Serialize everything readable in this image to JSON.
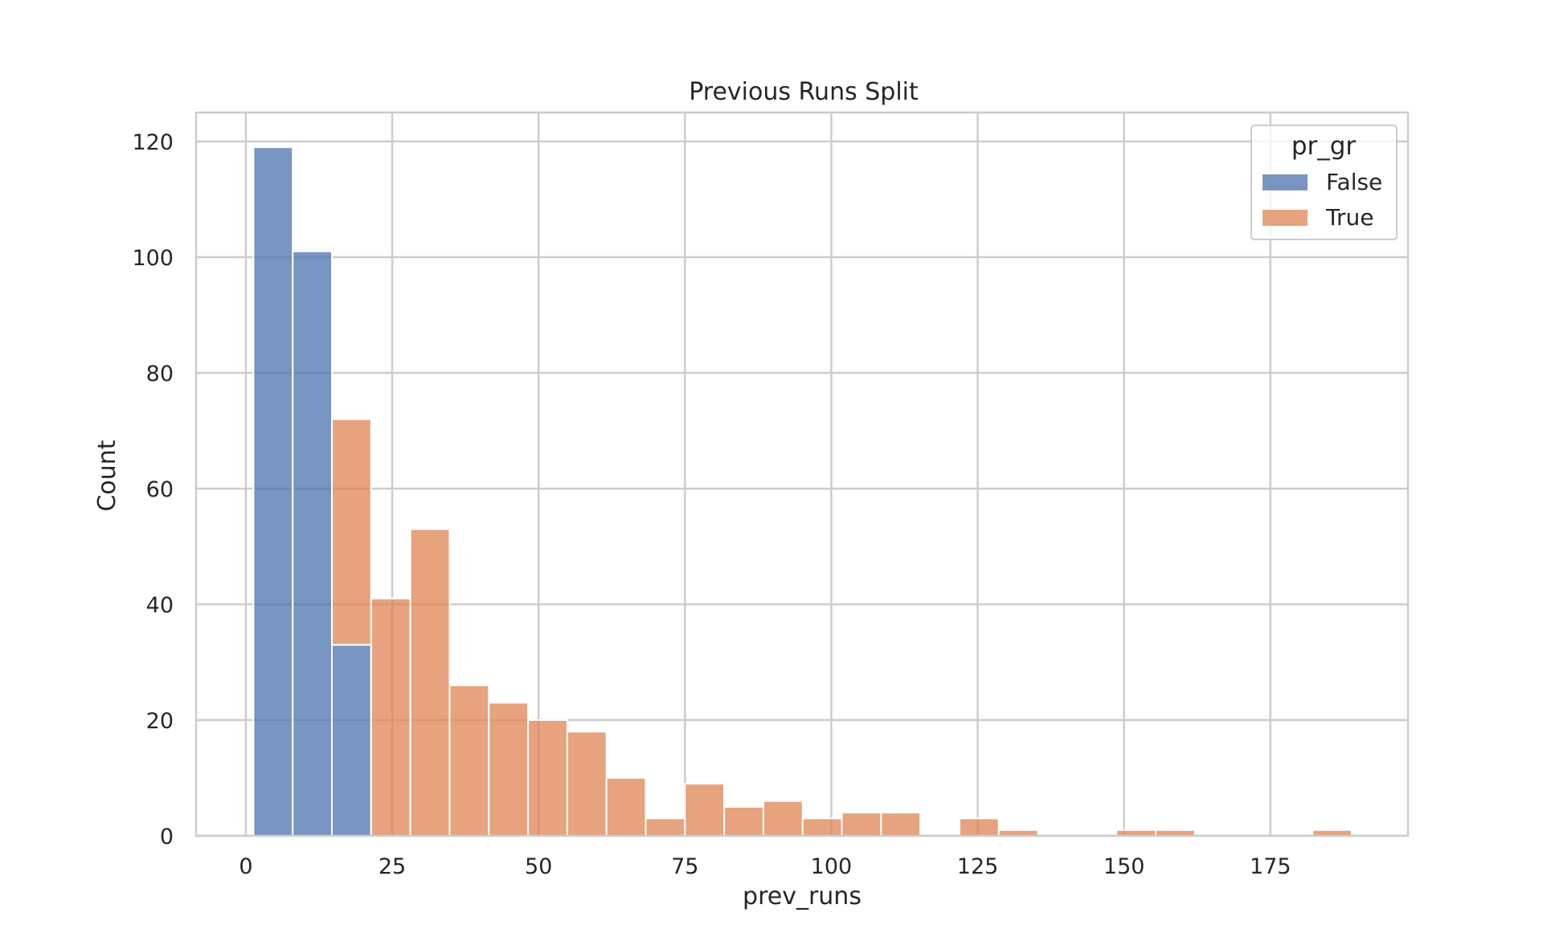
{
  "chart_data": {
    "type": "bar",
    "subtype": "stacked-histogram",
    "title": "Previous Runs Split",
    "xlabel": "prev_runs",
    "ylabel": "Count",
    "xlim": [
      -8.5,
      198.5
    ],
    "ylim": [
      0,
      125
    ],
    "xticks": [
      0,
      25,
      50,
      75,
      100,
      125,
      150,
      175
    ],
    "yticks": [
      0,
      20,
      40,
      60,
      80,
      100,
      120
    ],
    "grid": true,
    "legend": {
      "title": "pr_gr",
      "placement": "top-right",
      "entries": [
        "False",
        "True"
      ]
    },
    "bin_width": 6.7,
    "series": [
      {
        "name": "False",
        "color": "#4c72b0",
        "bins": [
          {
            "x0": 1.3,
            "count": 119
          },
          {
            "x0": 8.0,
            "count": 101
          },
          {
            "x0": 14.7,
            "count": 33
          }
        ]
      },
      {
        "name": "True",
        "color": "#dd8452",
        "bins": [
          {
            "x0": 14.7,
            "count": 39
          },
          {
            "x0": 21.4,
            "count": 41
          },
          {
            "x0": 28.1,
            "count": 53
          },
          {
            "x0": 34.8,
            "count": 26
          },
          {
            "x0": 41.5,
            "count": 23
          },
          {
            "x0": 48.2,
            "count": 20
          },
          {
            "x0": 54.9,
            "count": 18
          },
          {
            "x0": 61.6,
            "count": 10
          },
          {
            "x0": 68.3,
            "count": 3
          },
          {
            "x0": 75.0,
            "count": 9
          },
          {
            "x0": 81.7,
            "count": 5
          },
          {
            "x0": 88.4,
            "count": 6
          },
          {
            "x0": 95.1,
            "count": 3
          },
          {
            "x0": 101.8,
            "count": 4
          },
          {
            "x0": 108.5,
            "count": 4
          },
          {
            "x0": 121.9,
            "count": 3
          },
          {
            "x0": 128.6,
            "count": 1
          },
          {
            "x0": 148.7,
            "count": 1
          },
          {
            "x0": 155.4,
            "count": 1
          },
          {
            "x0": 182.2,
            "count": 1
          }
        ]
      }
    ]
  }
}
